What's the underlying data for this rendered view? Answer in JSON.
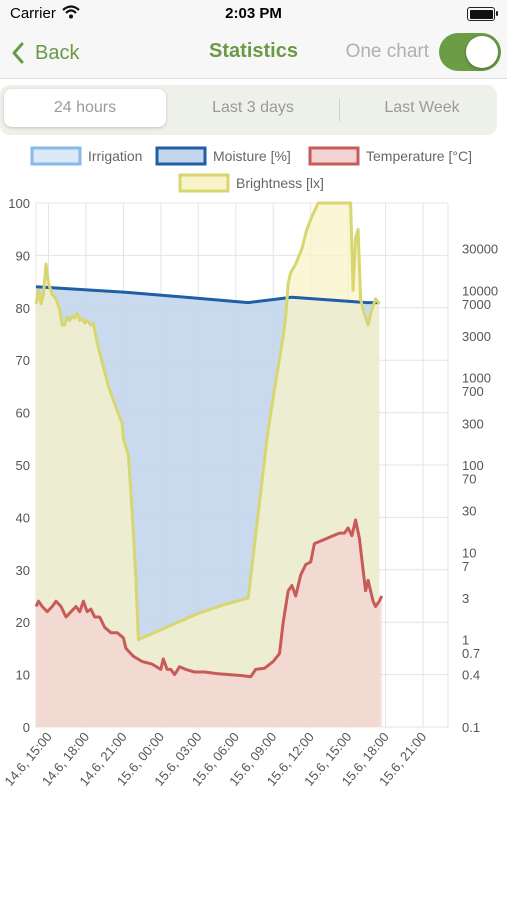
{
  "status": {
    "carrier": "Carrier",
    "time": "2:03 PM"
  },
  "nav": {
    "back_label": "Back",
    "title": "Statistics",
    "switch_label": "One chart",
    "switch_on": true
  },
  "tabs": [
    {
      "label": "24 hours",
      "active": true
    },
    {
      "label": "Last 3 days",
      "active": false
    },
    {
      "label": "Last Week",
      "active": false
    }
  ],
  "chart_data": {
    "type": "area",
    "legend": [
      {
        "name": "Irrigation",
        "fill": "#dce9f8",
        "stroke": "#8bb8ea"
      },
      {
        "name": "Moisture [%]",
        "fill": "#c3d6ec",
        "stroke": "#1e5fa8"
      },
      {
        "name": "Temperature [°C]",
        "fill": "#f3d2d2",
        "stroke": "#c95a5a"
      },
      {
        "name": "Brightness [lx]",
        "fill": "#f8f3c8",
        "stroke": "#d8d670"
      }
    ],
    "x_labels": [
      "14.6, 15:00",
      "14.6, 18:00",
      "14.6, 21:00",
      "15.6, 00:00",
      "15.6, 03:00",
      "15.6, 06:00",
      "15.6, 09:00",
      "15.6, 12:00",
      "15.6, 15:00",
      "15.6, 18:00",
      "15.6, 21:00"
    ],
    "xlim": [
      14.0,
      47.0
    ],
    "y_left": {
      "min": 0,
      "max": 100,
      "ticks": [
        0,
        10,
        20,
        30,
        40,
        50,
        60,
        70,
        80,
        90,
        100
      ]
    },
    "y_right": {
      "scale": "log",
      "min": 0.1,
      "max": 100000,
      "tick_labels": [
        "0.1",
        "0.4",
        "0.7",
        "1",
        "3",
        "7",
        "10",
        "30",
        "70",
        "100",
        "300",
        "700",
        "1000",
        "3000",
        "7000",
        "10000",
        "30000"
      ]
    },
    "series": [
      {
        "name": "Moisture [%]",
        "axis": "left",
        "stroke": "#1e5fa8",
        "fill": "#c3d6ec",
        "points": [
          [
            14.0,
            84
          ],
          [
            21.0,
            83
          ],
          [
            26.0,
            82
          ],
          [
            31.0,
            81
          ],
          [
            34.5,
            82
          ],
          [
            40.5,
            81
          ],
          [
            41.5,
            81
          ]
        ]
      },
      {
        "name": "Brightness [lx]",
        "axis": "right_log",
        "stroke": "#d8d670",
        "fill": "#f8f3c8",
        "points": [
          [
            14.0,
            7000
          ],
          [
            14.2,
            10000
          ],
          [
            14.4,
            7000
          ],
          [
            14.6,
            9000
          ],
          [
            14.8,
            20000
          ],
          [
            15.0,
            12000
          ],
          [
            15.3,
            9000
          ],
          [
            15.6,
            8000
          ],
          [
            15.9,
            6000
          ],
          [
            16.1,
            4000
          ],
          [
            16.3,
            4000
          ],
          [
            16.5,
            5000
          ],
          [
            16.7,
            4500
          ],
          [
            16.9,
            5000
          ],
          [
            17.1,
            4800
          ],
          [
            17.3,
            5500
          ],
          [
            17.5,
            4500
          ],
          [
            17.7,
            4800
          ],
          [
            17.9,
            4200
          ],
          [
            18.1,
            4500
          ],
          [
            18.4,
            4000
          ],
          [
            18.6,
            4200
          ],
          [
            18.9,
            2500
          ],
          [
            19.3,
            1500
          ],
          [
            19.8,
            800
          ],
          [
            20.3,
            500
          ],
          [
            20.9,
            300
          ],
          [
            21.0,
            200
          ],
          [
            21.4,
            130
          ],
          [
            21.7,
            30
          ],
          [
            22.0,
            5
          ],
          [
            22.2,
            1
          ],
          [
            24.0,
            1.3
          ],
          [
            27.0,
            2.0
          ],
          [
            29.0,
            2.5
          ],
          [
            31.0,
            3.0
          ],
          [
            32.5,
            200
          ],
          [
            33.0,
            600
          ],
          [
            33.6,
            2000
          ],
          [
            33.8,
            3000
          ],
          [
            34.0,
            5000
          ],
          [
            34.2,
            12000
          ],
          [
            34.4,
            16000
          ],
          [
            34.8,
            20000
          ],
          [
            35.3,
            30000
          ],
          [
            35.7,
            50000
          ],
          [
            36.1,
            70000
          ],
          [
            36.6,
            100000
          ],
          [
            39.2,
            100000
          ],
          [
            39.4,
            10000
          ],
          [
            39.6,
            40000
          ],
          [
            39.8,
            50000
          ],
          [
            40.0,
            8000
          ],
          [
            40.2,
            6000
          ],
          [
            40.6,
            4000
          ],
          [
            40.9,
            6000
          ],
          [
            41.2,
            8000
          ],
          [
            41.5,
            7000
          ]
        ]
      },
      {
        "name": "Temperature [°C]",
        "axis": "left",
        "stroke": "#c95a5a",
        "fill": "#f3d2d2",
        "points": [
          [
            14.0,
            23
          ],
          [
            14.2,
            24
          ],
          [
            14.5,
            23
          ],
          [
            14.9,
            22
          ],
          [
            15.3,
            23
          ],
          [
            15.6,
            24
          ],
          [
            16.0,
            23
          ],
          [
            16.4,
            21
          ],
          [
            16.8,
            22
          ],
          [
            17.2,
            23
          ],
          [
            17.5,
            22
          ],
          [
            17.8,
            24
          ],
          [
            18.1,
            22
          ],
          [
            18.4,
            22.5
          ],
          [
            18.7,
            21
          ],
          [
            19.1,
            21
          ],
          [
            19.5,
            19
          ],
          [
            20.0,
            18
          ],
          [
            20.5,
            18
          ],
          [
            21.0,
            17
          ],
          [
            21.2,
            15
          ],
          [
            21.8,
            13.5
          ],
          [
            22.5,
            12.5
          ],
          [
            23.3,
            12
          ],
          [
            24.0,
            11
          ],
          [
            24.2,
            13
          ],
          [
            24.5,
            11
          ],
          [
            24.8,
            11
          ],
          [
            25.1,
            10
          ],
          [
            25.5,
            11.5
          ],
          [
            26.0,
            11
          ],
          [
            26.7,
            10.5
          ],
          [
            27.5,
            10.5
          ],
          [
            28.5,
            10.2
          ],
          [
            29.5,
            10
          ],
          [
            30.5,
            9.8
          ],
          [
            31.2,
            9.6
          ],
          [
            31.6,
            11
          ],
          [
            32.3,
            11.2
          ],
          [
            33.0,
            12.5
          ],
          [
            33.5,
            14
          ],
          [
            33.8,
            20
          ],
          [
            34.2,
            26
          ],
          [
            34.5,
            27
          ],
          [
            34.8,
            25
          ],
          [
            35.2,
            29
          ],
          [
            35.6,
            31
          ],
          [
            36.0,
            31.5
          ],
          [
            36.3,
            35
          ],
          [
            36.8,
            35.5
          ],
          [
            37.3,
            36
          ],
          [
            37.8,
            36.5
          ],
          [
            38.3,
            37
          ],
          [
            38.7,
            37
          ],
          [
            39.0,
            38
          ],
          [
            39.3,
            36.5
          ],
          [
            39.6,
            39.5
          ],
          [
            39.9,
            36
          ],
          [
            40.2,
            30
          ],
          [
            40.4,
            26
          ],
          [
            40.6,
            28
          ],
          [
            40.8,
            26
          ],
          [
            41.0,
            24
          ],
          [
            41.2,
            23
          ],
          [
            41.5,
            24
          ],
          [
            41.7,
            25
          ]
        ]
      }
    ]
  }
}
